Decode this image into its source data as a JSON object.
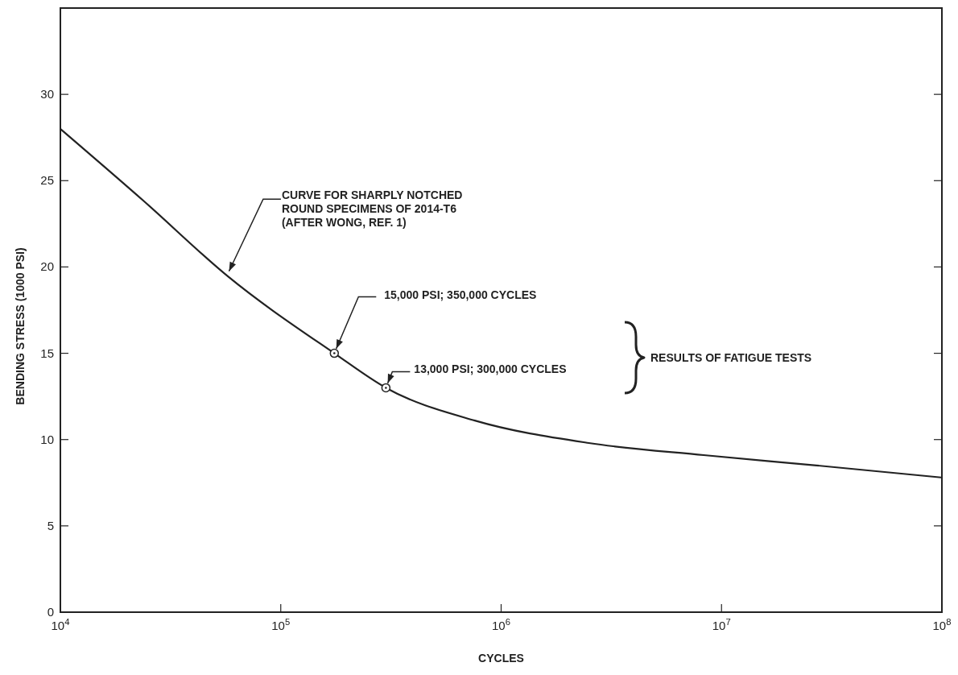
{
  "chart_data": {
    "type": "line",
    "xlabel": "CYCLES",
    "ylabel": "BENDING STRESS (1000 PSI)",
    "log": "x",
    "grid": false,
    "xlim": [
      10000,
      100000000
    ],
    "xticks": [
      {
        "value": 10000,
        "label": "10$^{4}$"
      },
      {
        "value": 100000,
        "label": "10$^{5}$"
      },
      {
        "value": 1000000,
        "label": "10$^{6}$"
      },
      {
        "value": 10000000,
        "label": "10$^{7}$"
      },
      {
        "value": 100000000,
        "label": "10$^{8}$"
      }
    ],
    "ylim": [
      0,
      35
    ],
    "yticks": [
      0,
      5,
      10,
      15,
      20,
      25,
      30
    ],
    "series": [
      {
        "color": "#222222",
        "marker": "none",
        "line_style": "solid",
        "x": [
          10000,
          24000,
          57000,
          175000,
          300000,
          760000,
          2500000,
          8300000,
          27000000,
          100000000
        ],
        "values": [
          28.0,
          23.8,
          19.5,
          15.0,
          13.0,
          11.1,
          9.8,
          9.1,
          8.5,
          7.8
        ]
      },
      {
        "type": "scatter",
        "color": "#222222",
        "marker": "circle",
        "x": [
          175000,
          300000
        ],
        "values": [
          15,
          13
        ]
      }
    ],
    "annotations": [
      {
        "text": "CURVE FOR SHARPLY NOTCHED\nROUND SPECIMENS OF 2014-T6\n(AFTER WONG, REF. 1)",
        "x": 57000,
        "y": 19.5
      },
      {
        "text": "15,000 PSI; 350,000 CYCLES",
        "x": 175000,
        "y": 15
      },
      {
        "text": "13,000 PSI; 300,000 CYCLES",
        "x": 300000,
        "y": 13
      },
      "RESULTS OF FATIGUE TESTS"
    ]
  }
}
